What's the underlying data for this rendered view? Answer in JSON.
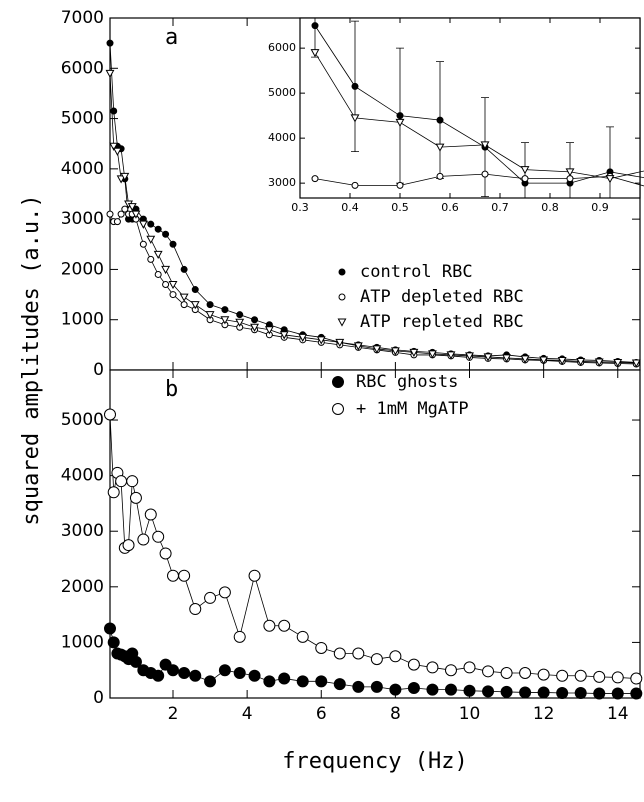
{
  "chart_data": [
    {
      "type": "line",
      "panel_label": "a",
      "ylabel": "squared amplitudes (a.u.)",
      "xlim": [
        0.3,
        14.6
      ],
      "xticks": [
        2,
        4,
        6,
        8,
        10,
        12,
        14
      ],
      "xtick_labels": false,
      "ylim": [
        0,
        7000
      ],
      "yticks": [
        0,
        1000,
        2000,
        3000,
        4000,
        5000,
        6000,
        7000
      ],
      "legend": "center-right",
      "marker_size": 3,
      "x": [
        0.3,
        0.4,
        0.5,
        0.6,
        0.7,
        0.8,
        0.9,
        1.0,
        1.2,
        1.4,
        1.6,
        1.8,
        2.0,
        2.3,
        2.6,
        3.0,
        3.4,
        3.8,
        4.2,
        4.6,
        5.0,
        5.5,
        6.0,
        6.5,
        7.0,
        7.5,
        8.0,
        8.5,
        9.0,
        9.5,
        10,
        10.5,
        11,
        11.5,
        12,
        12.5,
        13,
        13.5,
        14,
        14.5
      ],
      "series": [
        {
          "name": "control RBC",
          "color": "#000000",
          "marker": "filled-circle",
          "values": [
            6500,
            5150,
            4450,
            4400,
            3800,
            3000,
            3000,
            3200,
            3000,
            2900,
            2800,
            2700,
            2500,
            2000,
            1600,
            1300,
            1200,
            1100,
            1000,
            900,
            800,
            700,
            650,
            550,
            500,
            450,
            400,
            370,
            350,
            320,
            300,
            280,
            300,
            260,
            230,
            220,
            200,
            190,
            170,
            150
          ]
        },
        {
          "name": "ATP depleted RBC",
          "color": "#000000",
          "marker": "open-circle",
          "values": [
            3100,
            2950,
            2950,
            3100,
            3200,
            3100,
            3100,
            3000,
            2500,
            2200,
            1900,
            1700,
            1500,
            1300,
            1200,
            1000,
            900,
            850,
            800,
            700,
            650,
            600,
            550,
            500,
            450,
            400,
            350,
            300,
            300,
            280,
            250,
            230,
            220,
            200,
            190,
            170,
            150,
            140,
            130,
            120
          ]
        },
        {
          "name": "ATP repleted RBC",
          "color": "#000000",
          "marker": "open-triangle",
          "values": [
            5900,
            4450,
            4350,
            3800,
            3850,
            3300,
            3250,
            3100,
            2900,
            2600,
            2300,
            2000,
            1700,
            1450,
            1300,
            1100,
            1000,
            950,
            850,
            800,
            700,
            650,
            600,
            550,
            480,
            420,
            380,
            350,
            320,
            300,
            280,
            260,
            240,
            220,
            200,
            190,
            170,
            160,
            150,
            140
          ]
        }
      ]
    },
    {
      "type": "line",
      "inset": true,
      "xlim": [
        0.3,
        0.98
      ],
      "xticks": [
        0.3,
        0.4,
        0.5,
        0.6,
        0.7,
        0.8,
        0.9
      ],
      "ylim": [
        2670,
        6670
      ],
      "yticks": [
        3000,
        4000,
        5000,
        6000
      ],
      "marker_size": 3,
      "x": [
        0.33,
        0.41,
        0.5,
        0.58,
        0.67,
        0.75,
        0.84,
        0.92,
        1.0
      ],
      "series": [
        {
          "name": "control RBC",
          "color": "#000000",
          "marker": "filled-circle",
          "values": [
            6500,
            5150,
            4500,
            4400,
            3800,
            3000,
            3000,
            3250,
            3100
          ],
          "errors": [
            700,
            1450,
            1500,
            1300,
            1100,
            900,
            900,
            1000,
            900
          ]
        },
        {
          "name": "ATP depleted RBC",
          "color": "#000000",
          "marker": "open-circle",
          "values": [
            3100,
            2950,
            2950,
            3150,
            3200,
            3100,
            3100,
            3150,
            2900
          ]
        },
        {
          "name": "ATP repleted RBC",
          "color": "#000000",
          "marker": "open-triangle",
          "values": [
            5900,
            4450,
            4350,
            3800,
            3850,
            3300,
            3250,
            3100,
            3300
          ]
        }
      ]
    },
    {
      "type": "line",
      "panel_label": "b",
      "xlabel": "frequency (Hz)",
      "xlim": [
        0.3,
        14.6
      ],
      "xticks": [
        2,
        4,
        6,
        8,
        10,
        12,
        14
      ],
      "ylim": [
        0,
        5900
      ],
      "yticks": [
        0,
        1000,
        2000,
        3000,
        4000,
        5000
      ],
      "legend": "upper-right",
      "marker_size": 5.5,
      "x": [
        0.3,
        0.4,
        0.5,
        0.6,
        0.7,
        0.8,
        0.9,
        1.0,
        1.2,
        1.4,
        1.6,
        1.8,
        2.0,
        2.3,
        2.6,
        3.0,
        3.4,
        3.8,
        4.2,
        4.6,
        5.0,
        5.5,
        6.0,
        6.5,
        7.0,
        7.5,
        8.0,
        8.5,
        9.0,
        9.5,
        10,
        10.5,
        11,
        11.5,
        12,
        12.5,
        13,
        13.5,
        14,
        14.5
      ],
      "series": [
        {
          "name": "RBC ghosts",
          "color": "#000000",
          "marker": "filled-circle",
          "values": [
            1250,
            1000,
            800,
            780,
            750,
            700,
            800,
            650,
            500,
            450,
            400,
            600,
            500,
            450,
            400,
            300,
            500,
            450,
            400,
            300,
            350,
            300,
            300,
            250,
            200,
            200,
            150,
            180,
            150,
            150,
            130,
            120,
            110,
            100,
            100,
            90,
            90,
            80,
            80,
            80
          ]
        },
        {
          "name": "+ 1mM MgATP",
          "color": "#000000",
          "marker": "open-circle",
          "values": [
            5100,
            3700,
            4050,
            3900,
            2700,
            2750,
            3900,
            3600,
            2850,
            3300,
            2900,
            2600,
            2200,
            2200,
            1600,
            1800,
            1900,
            1100,
            2200,
            1300,
            1300,
            1100,
            900,
            800,
            800,
            700,
            750,
            600,
            550,
            500,
            550,
            480,
            450,
            450,
            420,
            400,
            400,
            380,
            370,
            350
          ]
        }
      ]
    }
  ]
}
